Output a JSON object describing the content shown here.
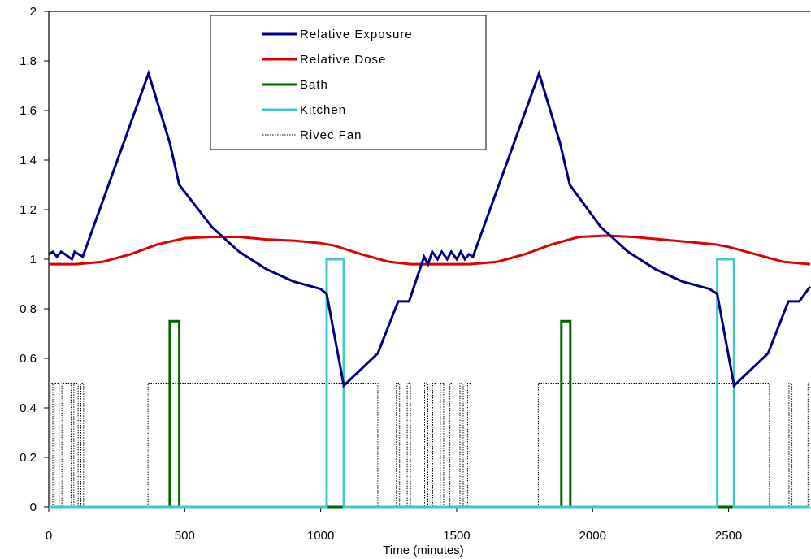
{
  "chart_data": {
    "type": "line",
    "xlabel": "Time (minutes)",
    "ylabel": "",
    "xlim": [
      0,
      2800
    ],
    "ylim": [
      0,
      2
    ],
    "xticks": [
      0,
      500,
      1000,
      1500,
      2000,
      2500
    ],
    "yticks": [
      0,
      0.2,
      0.4,
      0.6,
      0.8,
      1,
      1.2,
      1.4,
      1.6,
      1.8,
      2
    ],
    "grid": false,
    "legend_position": "top-center",
    "series": [
      {
        "name": "Relative Exposure",
        "color": "#000080",
        "style": "solid",
        "points": [
          [
            0,
            1.02
          ],
          [
            15,
            1.03
          ],
          [
            30,
            1.01
          ],
          [
            45,
            1.03
          ],
          [
            60,
            1.02
          ],
          [
            85,
            1.0
          ],
          [
            95,
            1.03
          ],
          [
            110,
            1.02
          ],
          [
            125,
            1.01
          ],
          [
            367,
            1.75
          ],
          [
            445,
            1.47
          ],
          [
            480,
            1.3
          ],
          [
            600,
            1.13
          ],
          [
            700,
            1.03
          ],
          [
            800,
            0.96
          ],
          [
            900,
            0.91
          ],
          [
            1000,
            0.88
          ],
          [
            1022,
            0.86
          ],
          [
            1085,
            0.49
          ],
          [
            1210,
            0.62
          ],
          [
            1285,
            0.83
          ],
          [
            1325,
            0.83
          ],
          [
            1380,
            1.01
          ],
          [
            1395,
            0.98
          ],
          [
            1410,
            1.03
          ],
          [
            1430,
            1.0
          ],
          [
            1445,
            1.03
          ],
          [
            1465,
            1.0
          ],
          [
            1480,
            1.03
          ],
          [
            1500,
            1.0
          ],
          [
            1515,
            1.03
          ],
          [
            1530,
            1.0
          ],
          [
            1545,
            1.02
          ],
          [
            1560,
            1.01
          ],
          [
            1803,
            1.75
          ],
          [
            1880,
            1.47
          ],
          [
            1916,
            1.3
          ],
          [
            2030,
            1.13
          ],
          [
            2130,
            1.03
          ],
          [
            2230,
            0.96
          ],
          [
            2330,
            0.91
          ],
          [
            2430,
            0.88
          ],
          [
            2458,
            0.86
          ],
          [
            2520,
            0.49
          ],
          [
            2645,
            0.62
          ],
          [
            2720,
            0.83
          ],
          [
            2760,
            0.83
          ],
          [
            2800,
            0.89
          ]
        ]
      },
      {
        "name": "Relative Dose",
        "color": "#e00000",
        "style": "solid",
        "points": [
          [
            0,
            0.98
          ],
          [
            100,
            0.98
          ],
          [
            200,
            0.99
          ],
          [
            300,
            1.02
          ],
          [
            400,
            1.06
          ],
          [
            500,
            1.085
          ],
          [
            600,
            1.09
          ],
          [
            700,
            1.09
          ],
          [
            800,
            1.08
          ],
          [
            900,
            1.075
          ],
          [
            1000,
            1.065
          ],
          [
            1050,
            1.055
          ],
          [
            1150,
            1.02
          ],
          [
            1250,
            0.99
          ],
          [
            1330,
            0.98
          ],
          [
            1400,
            0.98
          ],
          [
            1500,
            0.98
          ],
          [
            1550,
            0.98
          ],
          [
            1650,
            0.99
          ],
          [
            1750,
            1.02
          ],
          [
            1850,
            1.06
          ],
          [
            1950,
            1.09
          ],
          [
            2050,
            1.095
          ],
          [
            2150,
            1.09
          ],
          [
            2250,
            1.08
          ],
          [
            2350,
            1.07
          ],
          [
            2450,
            1.06
          ],
          [
            2500,
            1.05
          ],
          [
            2600,
            1.02
          ],
          [
            2700,
            0.99
          ],
          [
            2800,
            0.98
          ]
        ]
      },
      {
        "name": "Bath",
        "color": "#006400",
        "style": "solid",
        "points": [
          [
            0,
            0
          ],
          [
            445,
            0
          ],
          [
            445,
            0.75
          ],
          [
            480,
            0.75
          ],
          [
            480,
            0
          ],
          [
            1885,
            0
          ],
          [
            1885,
            0.75
          ],
          [
            1918,
            0.75
          ],
          [
            1918,
            0
          ],
          [
            2800,
            0
          ]
        ]
      },
      {
        "name": "Kitchen",
        "color": "#40c8c8",
        "style": "solid",
        "points": [
          [
            0,
            0
          ],
          [
            1022,
            0
          ],
          [
            1022,
            1
          ],
          [
            1085,
            1
          ],
          [
            1085,
            0
          ],
          [
            2458,
            0
          ],
          [
            2458,
            1
          ],
          [
            2520,
            1
          ],
          [
            2520,
            0
          ],
          [
            2800,
            0
          ]
        ]
      },
      {
        "name": "Rivec Fan",
        "color": "#000000",
        "style": "dotted",
        "points": [
          [
            0,
            0
          ],
          [
            5,
            0
          ],
          [
            5,
            0.5
          ],
          [
            15,
            0.5
          ],
          [
            15,
            0
          ],
          [
            20,
            0
          ],
          [
            20,
            0.5
          ],
          [
            38,
            0.5
          ],
          [
            38,
            0
          ],
          [
            48,
            0
          ],
          [
            48,
            0.5
          ],
          [
            82,
            0.5
          ],
          [
            82,
            0
          ],
          [
            92,
            0
          ],
          [
            92,
            0.5
          ],
          [
            108,
            0.5
          ],
          [
            108,
            0
          ],
          [
            118,
            0
          ],
          [
            118,
            0.5
          ],
          [
            128,
            0.5
          ],
          [
            128,
            0
          ],
          [
            365,
            0
          ],
          [
            365,
            0.5
          ],
          [
            1210,
            0.5
          ],
          [
            1210,
            0
          ],
          [
            1278,
            0
          ],
          [
            1278,
            0.5
          ],
          [
            1290,
            0.5
          ],
          [
            1290,
            0
          ],
          [
            1318,
            0
          ],
          [
            1318,
            0.5
          ],
          [
            1330,
            0.5
          ],
          [
            1330,
            0
          ],
          [
            1382,
            0
          ],
          [
            1382,
            0.5
          ],
          [
            1394,
            0.5
          ],
          [
            1394,
            0
          ],
          [
            1412,
            0
          ],
          [
            1412,
            0.5
          ],
          [
            1424,
            0.5
          ],
          [
            1424,
            0
          ],
          [
            1440,
            0
          ],
          [
            1440,
            0.5
          ],
          [
            1452,
            0.5
          ],
          [
            1452,
            0
          ],
          [
            1475,
            0
          ],
          [
            1475,
            0.5
          ],
          [
            1487,
            0.5
          ],
          [
            1487,
            0
          ],
          [
            1512,
            0
          ],
          [
            1512,
            0.5
          ],
          [
            1524,
            0.5
          ],
          [
            1524,
            0
          ],
          [
            1540,
            0
          ],
          [
            1540,
            0.5
          ],
          [
            1552,
            0.5
          ],
          [
            1552,
            0
          ],
          [
            1800,
            0
          ],
          [
            1800,
            0.5
          ],
          [
            2650,
            0.5
          ],
          [
            2650,
            0
          ],
          [
            2722,
            0
          ],
          [
            2722,
            0.5
          ],
          [
            2733,
            0.5
          ],
          [
            2733,
            0
          ],
          [
            2792,
            0
          ],
          [
            2792,
            0.5
          ],
          [
            2800,
            0.5
          ]
        ]
      }
    ]
  }
}
